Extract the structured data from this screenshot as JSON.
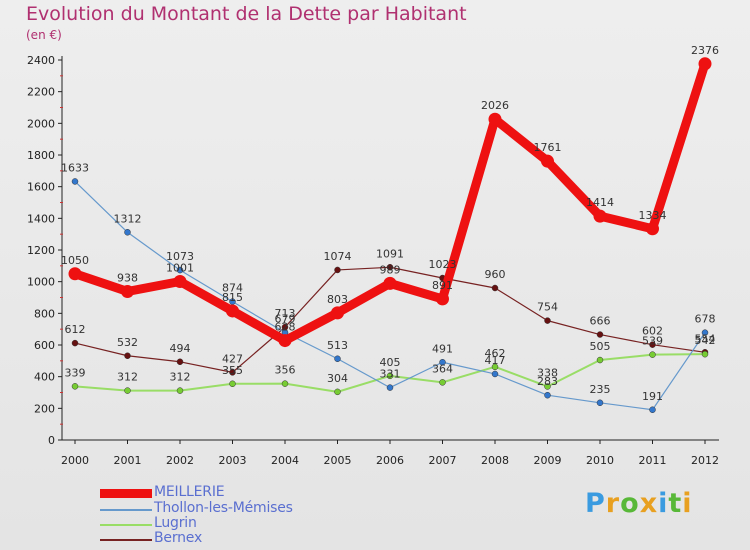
{
  "chart_data": {
    "type": "line",
    "title": "Evolution du Montant de la Dette par Habitant",
    "unit": "(en €)",
    "categories": [
      "2000",
      "2001",
      "2002",
      "2003",
      "2004",
      "2005",
      "2006",
      "2007",
      "2008",
      "2009",
      "2010",
      "2011",
      "2012"
    ],
    "ylim": [
      0,
      2400
    ],
    "yticks": [
      0,
      200,
      400,
      600,
      800,
      1000,
      1200,
      1400,
      1600,
      1800,
      2000,
      2200,
      2400
    ],
    "grid": false,
    "legend_position": "bottom-left",
    "series": [
      {
        "name": "MEILLERIE",
        "color": "#ee1111",
        "values": [
          1050,
          938,
          1001,
          815,
          628,
          803,
          989,
          891,
          2026,
          1761,
          1414,
          1334,
          2376
        ]
      },
      {
        "name": "Thollon-les-Mémises",
        "color": "#6699cc",
        "values": [
          1633,
          1312,
          1073,
          874,
          679,
          513,
          331,
          491,
          417,
          283,
          235,
          191,
          678
        ]
      },
      {
        "name": "Lugrin",
        "color": "#99dd66",
        "values": [
          339,
          312,
          312,
          355,
          356,
          304,
          405,
          364,
          462,
          338,
          505,
          539,
          542
        ]
      },
      {
        "name": "Bernex",
        "color": "#772222",
        "values": [
          612,
          532,
          494,
          427,
          713,
          1074,
          1091,
          1023,
          960,
          754,
          666,
          602,
          554
        ]
      }
    ]
  },
  "brand": {
    "letters": [
      "P",
      "r",
      "o",
      "x",
      "i",
      "t",
      "i"
    ],
    "colors": [
      "#3a9be0",
      "#e8a020",
      "#58b838",
      "#e8a020",
      "#3a9be0",
      "#58b838",
      "#e8a020"
    ]
  }
}
